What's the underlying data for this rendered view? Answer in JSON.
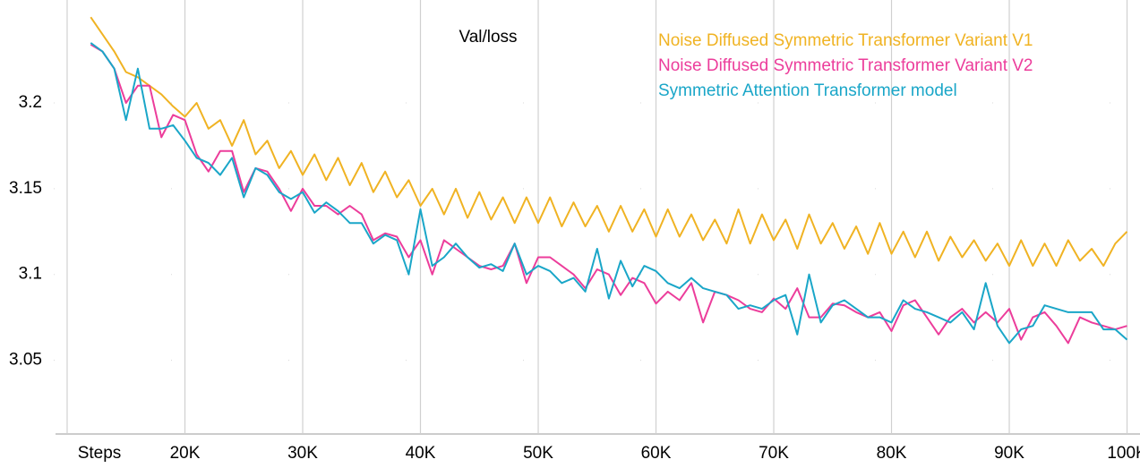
{
  "chart_data": {
    "type": "line",
    "title": "Val/loss",
    "x_label": "Steps",
    "x": [
      12000,
      13000,
      14000,
      15000,
      16000,
      17000,
      18000,
      19000,
      20000,
      21000,
      22000,
      23000,
      24000,
      25000,
      26000,
      27000,
      28000,
      29000,
      30000,
      31000,
      32000,
      33000,
      34000,
      35000,
      36000,
      37000,
      38000,
      39000,
      40000,
      41000,
      42000,
      43000,
      44000,
      45000,
      46000,
      47000,
      48000,
      49000,
      50000,
      51000,
      52000,
      53000,
      54000,
      55000,
      56000,
      57000,
      58000,
      59000,
      60000,
      61000,
      62000,
      63000,
      64000,
      65000,
      66000,
      67000,
      68000,
      69000,
      70000,
      71000,
      72000,
      73000,
      74000,
      75000,
      76000,
      77000,
      78000,
      79000,
      80000,
      81000,
      82000,
      83000,
      84000,
      85000,
      86000,
      87000,
      88000,
      89000,
      90000,
      91000,
      92000,
      93000,
      94000,
      95000,
      96000,
      97000,
      98000,
      99000,
      100000
    ],
    "series": [
      {
        "name": "Noise Diffused Symmetric Transformer Variant V1",
        "color": "#f0b323",
        "values": [
          3.25,
          3.24,
          3.23,
          3.218,
          3.215,
          3.21,
          3.205,
          3.198,
          3.192,
          3.2,
          3.185,
          3.19,
          3.175,
          3.19,
          3.17,
          3.178,
          3.162,
          3.172,
          3.158,
          3.17,
          3.155,
          3.168,
          3.152,
          3.165,
          3.148,
          3.16,
          3.145,
          3.155,
          3.14,
          3.15,
          3.135,
          3.15,
          3.133,
          3.148,
          3.132,
          3.145,
          3.13,
          3.145,
          3.13,
          3.145,
          3.128,
          3.142,
          3.128,
          3.14,
          3.125,
          3.14,
          3.125,
          3.138,
          3.122,
          3.138,
          3.122,
          3.135,
          3.12,
          3.132,
          3.118,
          3.138,
          3.118,
          3.135,
          3.12,
          3.132,
          3.115,
          3.135,
          3.118,
          3.13,
          3.115,
          3.128,
          3.112,
          3.13,
          3.112,
          3.125,
          3.11,
          3.125,
          3.108,
          3.122,
          3.11,
          3.12,
          3.108,
          3.118,
          3.105,
          3.12,
          3.105,
          3.118,
          3.105,
          3.12,
          3.108,
          3.115,
          3.105,
          3.118,
          3.125
        ]
      },
      {
        "name": "Noise Diffused Symmetric Transformer Variant V2",
        "color": "#ec3d9b",
        "values": [
          3.234,
          3.23,
          3.22,
          3.2,
          3.21,
          3.21,
          3.18,
          3.193,
          3.19,
          3.17,
          3.16,
          3.172,
          3.172,
          3.148,
          3.162,
          3.16,
          3.15,
          3.137,
          3.15,
          3.14,
          3.14,
          3.135,
          3.14,
          3.135,
          3.12,
          3.124,
          3.122,
          3.11,
          3.12,
          3.1,
          3.12,
          3.115,
          3.11,
          3.105,
          3.103,
          3.105,
          3.118,
          3.095,
          3.11,
          3.11,
          3.105,
          3.1,
          3.092,
          3.103,
          3.1,
          3.088,
          3.098,
          3.095,
          3.083,
          3.09,
          3.085,
          3.095,
          3.072,
          3.09,
          3.088,
          3.085,
          3.08,
          3.078,
          3.086,
          3.08,
          3.092,
          3.075,
          3.075,
          3.083,
          3.082,
          3.078,
          3.075,
          3.078,
          3.067,
          3.082,
          3.085,
          3.075,
          3.065,
          3.075,
          3.08,
          3.072,
          3.078,
          3.072,
          3.08,
          3.062,
          3.075,
          3.078,
          3.07,
          3.06,
          3.075,
          3.072,
          3.07,
          3.068,
          3.07
        ]
      },
      {
        "name": "Symmetric Attention Transformer model",
        "color": "#1aa6c8",
        "values": [
          3.235,
          3.23,
          3.22,
          3.19,
          3.22,
          3.185,
          3.185,
          3.187,
          3.178,
          3.168,
          3.165,
          3.158,
          3.168,
          3.145,
          3.162,
          3.158,
          3.148,
          3.144,
          3.148,
          3.136,
          3.142,
          3.137,
          3.13,
          3.13,
          3.118,
          3.123,
          3.12,
          3.1,
          3.138,
          3.105,
          3.11,
          3.118,
          3.11,
          3.104,
          3.106,
          3.102,
          3.118,
          3.1,
          3.105,
          3.102,
          3.095,
          3.098,
          3.09,
          3.115,
          3.086,
          3.108,
          3.093,
          3.105,
          3.102,
          3.095,
          3.092,
          3.098,
          3.092,
          3.09,
          3.088,
          3.08,
          3.082,
          3.08,
          3.085,
          3.088,
          3.065,
          3.1,
          3.072,
          3.082,
          3.085,
          3.08,
          3.075,
          3.075,
          3.072,
          3.085,
          3.08,
          3.078,
          3.075,
          3.072,
          3.078,
          3.068,
          3.095,
          3.07,
          3.06,
          3.068,
          3.07,
          3.082,
          3.08,
          3.078,
          3.078,
          3.078,
          3.068,
          3.068,
          3.062
        ]
      }
    ],
    "xlim": [
      8860,
      101100
    ],
    "xticks": [
      {
        "value": 10000,
        "label": "Steps"
      },
      {
        "value": 20000,
        "label": "20K"
      },
      {
        "value": 30000,
        "label": "30K"
      },
      {
        "value": 40000,
        "label": "40K"
      },
      {
        "value": 50000,
        "label": "50K"
      },
      {
        "value": 60000,
        "label": "60K"
      },
      {
        "value": 70000,
        "label": "70K"
      },
      {
        "value": 80000,
        "label": "80K"
      },
      {
        "value": 90000,
        "label": "90K"
      },
      {
        "value": 100000,
        "label": "100K"
      }
    ],
    "ylim": [
      3.007,
      3.26
    ],
    "yticks": [
      3.05,
      3.1,
      3.15,
      3.2
    ],
    "grid": true,
    "legend": "upper right"
  }
}
